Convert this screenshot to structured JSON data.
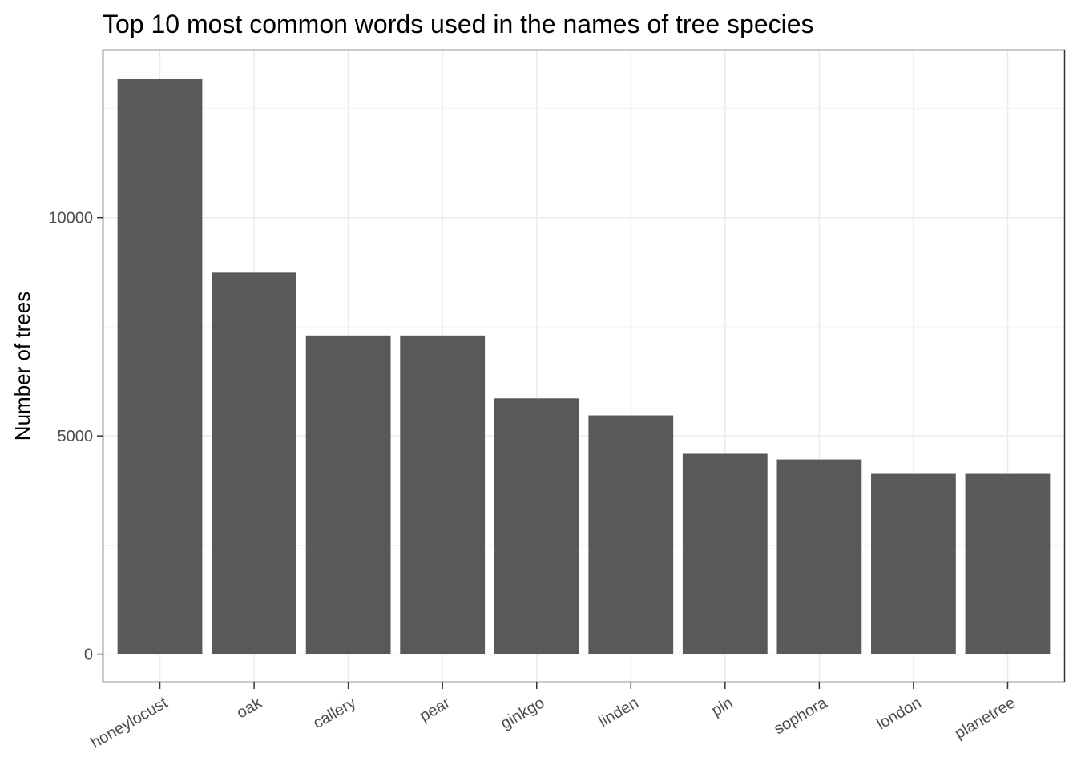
{
  "chart_data": {
    "type": "bar",
    "title": "Top 10 most common words used in the names of tree species",
    "xlabel": "",
    "ylabel": "Number of trees",
    "categories": [
      "honeylocust",
      "oak",
      "callery",
      "pear",
      "ginkgo",
      "linden",
      "pin",
      "sophora",
      "london",
      "planetree"
    ],
    "values": [
      13175,
      8740,
      7300,
      7300,
      5860,
      5470,
      4590,
      4460,
      4130,
      4130
    ],
    "ylim": [
      -650,
      13830
    ],
    "yticks": [
      0,
      5000,
      10000
    ],
    "ytick_labels": [
      "0",
      "5000",
      "10000"
    ],
    "grid": true,
    "legend": "none",
    "colors": {
      "bar": "#595959",
      "panel_border": "#333333",
      "grid_major": "#ebebeb",
      "grid_minor": "#f3f3f3",
      "tick_text": "#4d4d4d"
    }
  }
}
